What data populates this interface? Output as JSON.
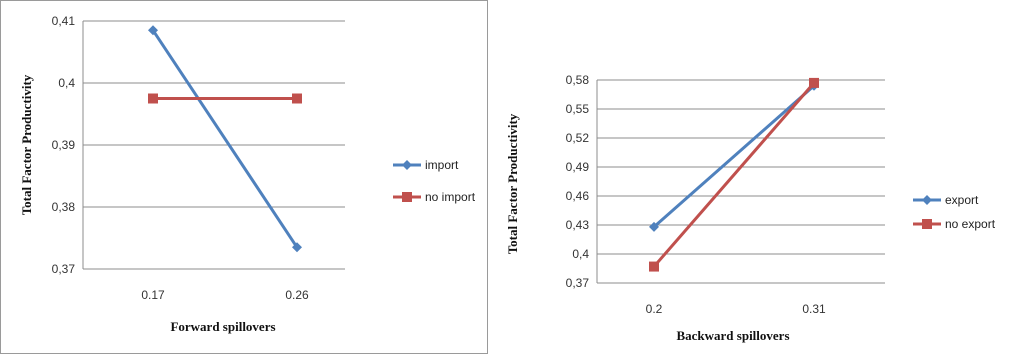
{
  "chart_data": [
    {
      "type": "line",
      "categories": [
        "0.17",
        "0.26"
      ],
      "series": [
        {
          "name": "import",
          "values": [
            0.4085,
            0.3735
          ],
          "color": "#4F81BD",
          "marker": "diamond"
        },
        {
          "name": "no import",
          "values": [
            0.3975,
            0.3975
          ],
          "color": "#C0504D",
          "marker": "square"
        }
      ],
      "xlabel": "Forward spillovers",
      "ylabel": "Total Factor Productivity",
      "ylim": [
        0.37,
        0.41
      ],
      "yticks": [
        "0,41",
        "0,4",
        "0,39",
        "0,38",
        "0,37"
      ],
      "ytick_values": [
        0.41,
        0.4,
        0.39,
        0.38,
        0.37
      ],
      "grid": "horizontal",
      "legend": "right"
    },
    {
      "type": "line",
      "categories": [
        "0.2",
        "0.31"
      ],
      "series": [
        {
          "name": "export",
          "values": [
            0.428,
            0.574
          ],
          "color": "#4F81BD",
          "marker": "diamond"
        },
        {
          "name": "no export",
          "values": [
            0.387,
            0.577
          ],
          "color": "#C0504D",
          "marker": "square"
        }
      ],
      "xlabel": "Backward spillovers",
      "ylabel": "Total Factor Productivity",
      "ylim": [
        0.37,
        0.58
      ],
      "yticks": [
        "0,58",
        "0,55",
        "0,52",
        "0,49",
        "0,46",
        "0,43",
        "0,4",
        "0,37"
      ],
      "ytick_values": [
        0.58,
        0.55,
        0.52,
        0.49,
        0.46,
        0.43,
        0.4,
        0.37
      ],
      "grid": "horizontal",
      "legend": "right"
    }
  ]
}
